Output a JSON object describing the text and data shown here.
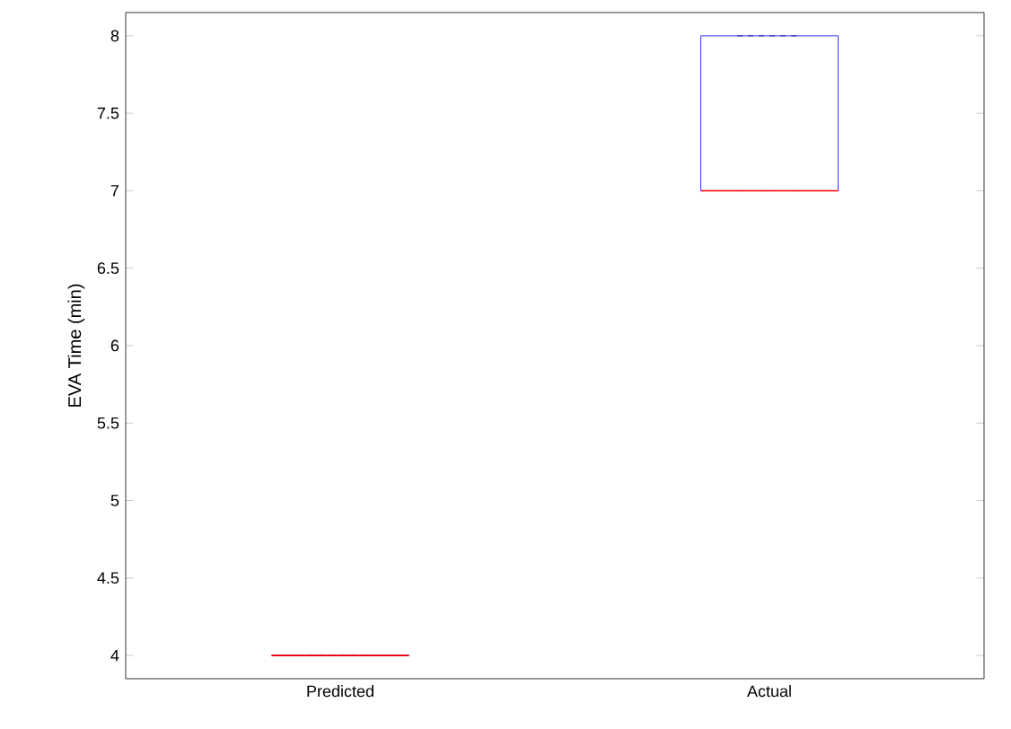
{
  "chart_data": {
    "type": "box",
    "ylabel": "EVA Time (min)",
    "categories": [
      "Predicted",
      "Actual"
    ],
    "boxes": [
      {
        "low": 4,
        "q1": 4,
        "median": 4,
        "q3": 4,
        "high": 4
      },
      {
        "low": 7,
        "q1": 7,
        "median": 7,
        "q3": 8,
        "high": 8
      }
    ],
    "color": "#0000ff",
    "ylim": [
      3.85,
      8.15
    ],
    "yticks": [
      4,
      4.5,
      5,
      5.5,
      6,
      6.5,
      7,
      7.5,
      8
    ],
    "grid": false
  }
}
